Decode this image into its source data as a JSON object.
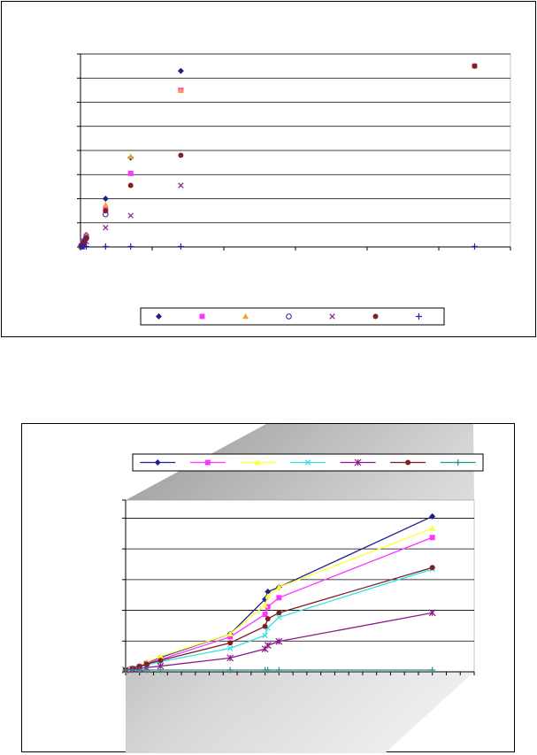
{
  "colors": {
    "navy": "#1F1F8F",
    "magenta": "#FF33FF",
    "orange": "#F5A623",
    "yellow": "#FFFF33",
    "cyan": "#33E0E0",
    "purple": "#8B1A8B",
    "brown": "#7F1F1F",
    "blue_plus": "#2222B0",
    "teal": "#2A9090",
    "gridline": "#000000"
  },
  "chart_data": [
    {
      "type": "scatter",
      "title": "",
      "xlabel": "",
      "ylabel": "",
      "xlim": [
        0,
        6
      ],
      "ylim": [
        0,
        8
      ],
      "grid": true,
      "legend_position": "bottom",
      "series": [
        {
          "marker": "diamond",
          "color": "#1F1F8F",
          "points": [
            [
              0.01,
              0.05
            ],
            [
              0.03,
              0.15
            ],
            [
              0.05,
              0.3
            ],
            [
              0.08,
              0.5
            ],
            [
              0.35,
              2.0
            ],
            [
              0.7,
              3.7
            ],
            [
              1.4,
              7.3
            ]
          ]
        },
        {
          "marker": "square",
          "color": "#FF33FF",
          "points": [
            [
              0.01,
              0.04
            ],
            [
              0.03,
              0.12
            ],
            [
              0.05,
              0.25
            ],
            [
              0.08,
              0.42
            ],
            [
              0.35,
              1.55
            ],
            [
              0.7,
              3.05
            ],
            [
              1.4,
              6.5
            ],
            [
              5.5,
              7.5
            ]
          ]
        },
        {
          "marker": "triangle",
          "color": "#F5A623",
          "points": [
            [
              0.01,
              0.05
            ],
            [
              0.03,
              0.14
            ],
            [
              0.05,
              0.28
            ],
            [
              0.08,
              0.48
            ],
            [
              0.35,
              1.75
            ],
            [
              0.7,
              3.75
            ],
            [
              1.4,
              6.5
            ],
            [
              5.5,
              7.5
            ]
          ]
        },
        {
          "marker": "circle-open",
          "color": "#1F1F8F",
          "points": [
            [
              0.01,
              0.04
            ],
            [
              0.03,
              0.11
            ],
            [
              0.05,
              0.22
            ],
            [
              0.08,
              0.38
            ],
            [
              0.35,
              1.35
            ]
          ]
        },
        {
          "marker": "x",
          "color": "#8B1A8B",
          "points": [
            [
              0.01,
              0.02
            ],
            [
              0.03,
              0.07
            ],
            [
              0.05,
              0.13
            ],
            [
              0.08,
              0.22
            ],
            [
              0.35,
              0.8
            ],
            [
              0.7,
              1.3
            ],
            [
              1.4,
              2.55
            ]
          ]
        },
        {
          "marker": "circle-filled",
          "color": "#7F1F1F",
          "points": [
            [
              0.01,
              0.04
            ],
            [
              0.03,
              0.1
            ],
            [
              0.05,
              0.2
            ],
            [
              0.08,
              0.35
            ],
            [
              0.35,
              1.5
            ],
            [
              0.7,
              2.55
            ],
            [
              1.4,
              3.8
            ],
            [
              5.5,
              7.5
            ]
          ]
        },
        {
          "marker": "plus",
          "color": "#2222B0",
          "points": [
            [
              0.01,
              0.02
            ],
            [
              0.03,
              0.02
            ],
            [
              0.05,
              0.02
            ],
            [
              0.08,
              0.02
            ],
            [
              0.35,
              0.02
            ],
            [
              0.7,
              0.02
            ],
            [
              1.4,
              0.02
            ],
            [
              5.5,
              0.02
            ]
          ]
        }
      ]
    },
    {
      "type": "line",
      "title": "",
      "xlabel": "",
      "ylabel": "",
      "xlim": [
        0,
        25
      ],
      "ylim": [
        0,
        5.7
      ],
      "grid": true,
      "legend_position": "top",
      "series": [
        {
          "marker": "diamond",
          "color": "#1F1F8F",
          "x": [
            0,
            0.5,
            1,
            1.5,
            2.5,
            7.5,
            10,
            10.2,
            11,
            22
          ],
          "y": [
            0,
            0.06,
            0.14,
            0.25,
            0.42,
            1.2,
            2.35,
            2.6,
            2.75,
            5.1
          ]
        },
        {
          "marker": "square",
          "color": "#FF33FF",
          "x": [
            0,
            0.5,
            1,
            1.5,
            2.5,
            7.5,
            10,
            10.2,
            11,
            22
          ],
          "y": [
            0,
            0.05,
            0.12,
            0.22,
            0.35,
            1.1,
            1.85,
            2.1,
            2.4,
            4.4
          ]
        },
        {
          "marker": "triangle",
          "color": "#FFFF33",
          "x": [
            0,
            0.5,
            1,
            1.5,
            2.5,
            7.5,
            10,
            10.2,
            11,
            22
          ],
          "y": [
            0,
            0.06,
            0.15,
            0.26,
            0.45,
            1.2,
            2.15,
            2.45,
            2.75,
            4.7
          ]
        },
        {
          "marker": "x",
          "color": "#33E0E0",
          "x": [
            0,
            0.5,
            1,
            1.5,
            2.5,
            7.5,
            10,
            10.2,
            11,
            22
          ],
          "y": [
            0,
            0.04,
            0.1,
            0.17,
            0.28,
            0.72,
            1.15,
            1.4,
            1.75,
            3.35
          ]
        },
        {
          "marker": "asterisk",
          "color": "#8B1A8B",
          "x": [
            0,
            0.5,
            1,
            1.5,
            2.5,
            7.5,
            10,
            10.2,
            11,
            22
          ],
          "y": [
            0,
            0.02,
            0.05,
            0.08,
            0.13,
            0.4,
            0.7,
            0.82,
            0.95,
            1.9
          ]
        },
        {
          "marker": "circle-filled",
          "color": "#7F1F1F",
          "x": [
            0,
            0.5,
            1,
            1.5,
            2.5,
            7.5,
            10,
            10.2,
            11,
            22
          ],
          "y": [
            0,
            0.05,
            0.12,
            0.2,
            0.32,
            0.9,
            1.45,
            1.7,
            1.9,
            3.4
          ]
        },
        {
          "marker": "plus",
          "color": "#2A9090",
          "x": [
            0,
            0.5,
            1,
            1.5,
            2.5,
            7.5,
            10,
            10.2,
            11,
            22
          ],
          "y": [
            0,
            0,
            0,
            0,
            0,
            0,
            0,
            0,
            0,
            0
          ]
        }
      ]
    }
  ]
}
